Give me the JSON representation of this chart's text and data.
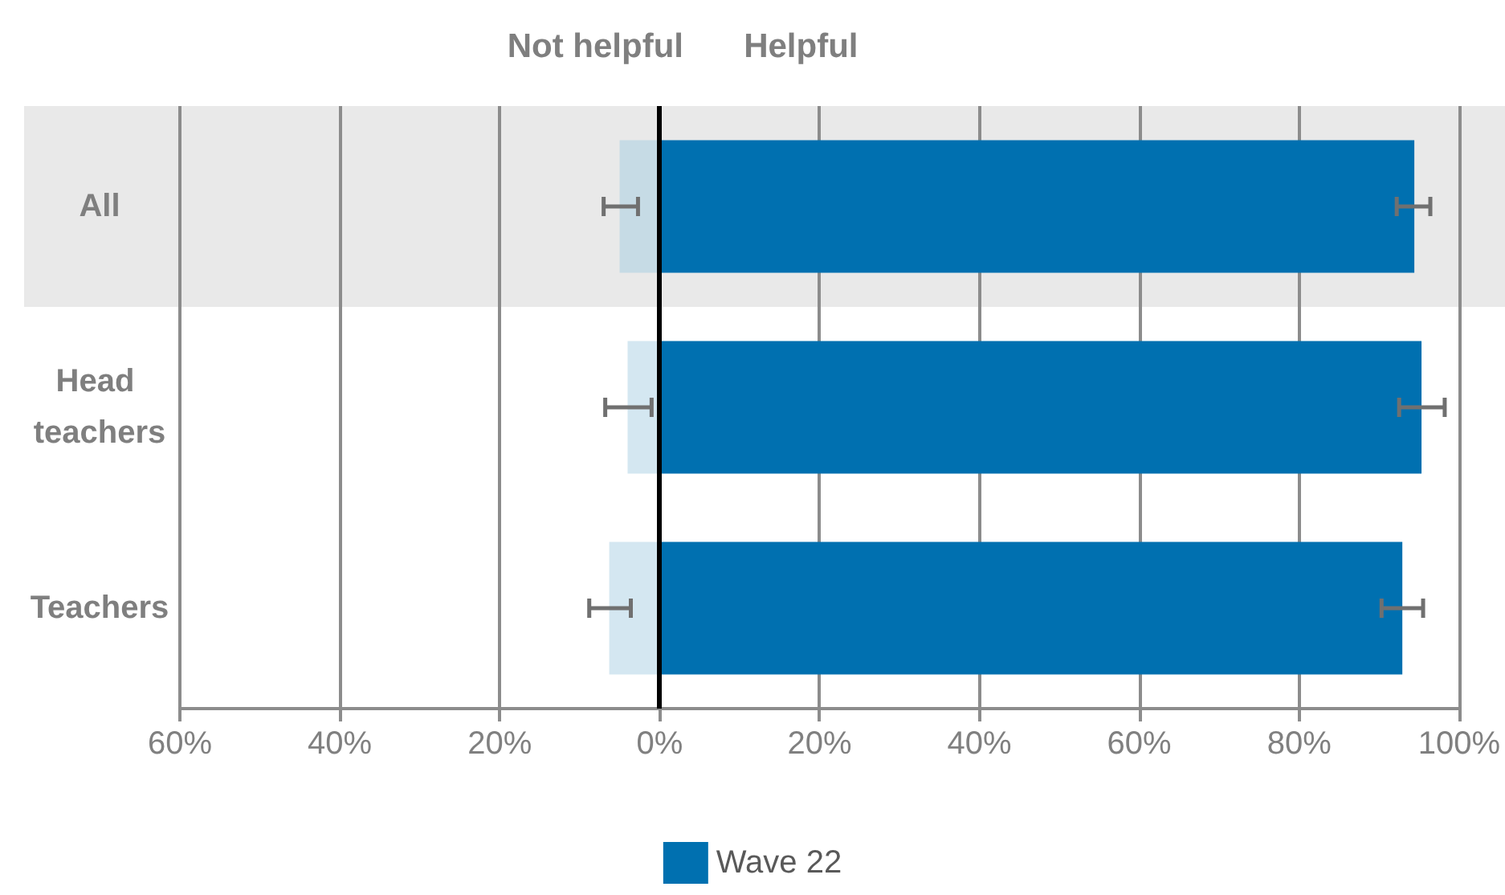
{
  "chart_data": {
    "type": "bar",
    "orientation": "horizontal",
    "stacked": true,
    "categories": [
      "All",
      "Head teachers",
      "Teachers"
    ],
    "series": [
      {
        "color": "#d4e7f1",
        "colors": [
          "#c6dbe5",
          "#d4e7f1",
          "#d4e7f1"
        ],
        "values": [
          -5,
          -4,
          -6.3
        ],
        "errors": [
          [
            -7,
            -2.7
          ],
          [
            -6.8,
            -1
          ],
          [
            -8.8,
            -3.6
          ]
        ]
      },
      {
        "name": "Wave 22",
        "color": "#0070b0",
        "values": [
          94.4,
          95.3,
          92.9
        ],
        "errors": [
          [
            92.2,
            96.4
          ],
          [
            92.5,
            98.2
          ],
          [
            90.3,
            95.5
          ]
        ]
      }
    ],
    "xlim": [
      -60,
      100
    ],
    "xticks": [
      {
        "value": -60,
        "label": "60%"
      },
      {
        "value": -40,
        "label": "40%"
      },
      {
        "value": -20,
        "label": "20%"
      },
      {
        "value": 0,
        "label": "0%"
      },
      {
        "value": 20,
        "label": "20%"
      },
      {
        "value": 40,
        "label": "40%"
      },
      {
        "value": 60,
        "label": "60%"
      },
      {
        "value": 80,
        "label": "80%"
      },
      {
        "value": 100,
        "label": "100%"
      }
    ],
    "grid": "x",
    "legend": "bottom",
    "ref_lines": [
      {
        "axis": "x",
        "value": 0,
        "color": "#000000"
      }
    ],
    "bands": [
      {
        "axis": "y",
        "from": "All",
        "to": "All",
        "color": "#e9e9e9"
      }
    ],
    "annotations": [
      "Not helpful",
      "Helpful"
    ]
  }
}
